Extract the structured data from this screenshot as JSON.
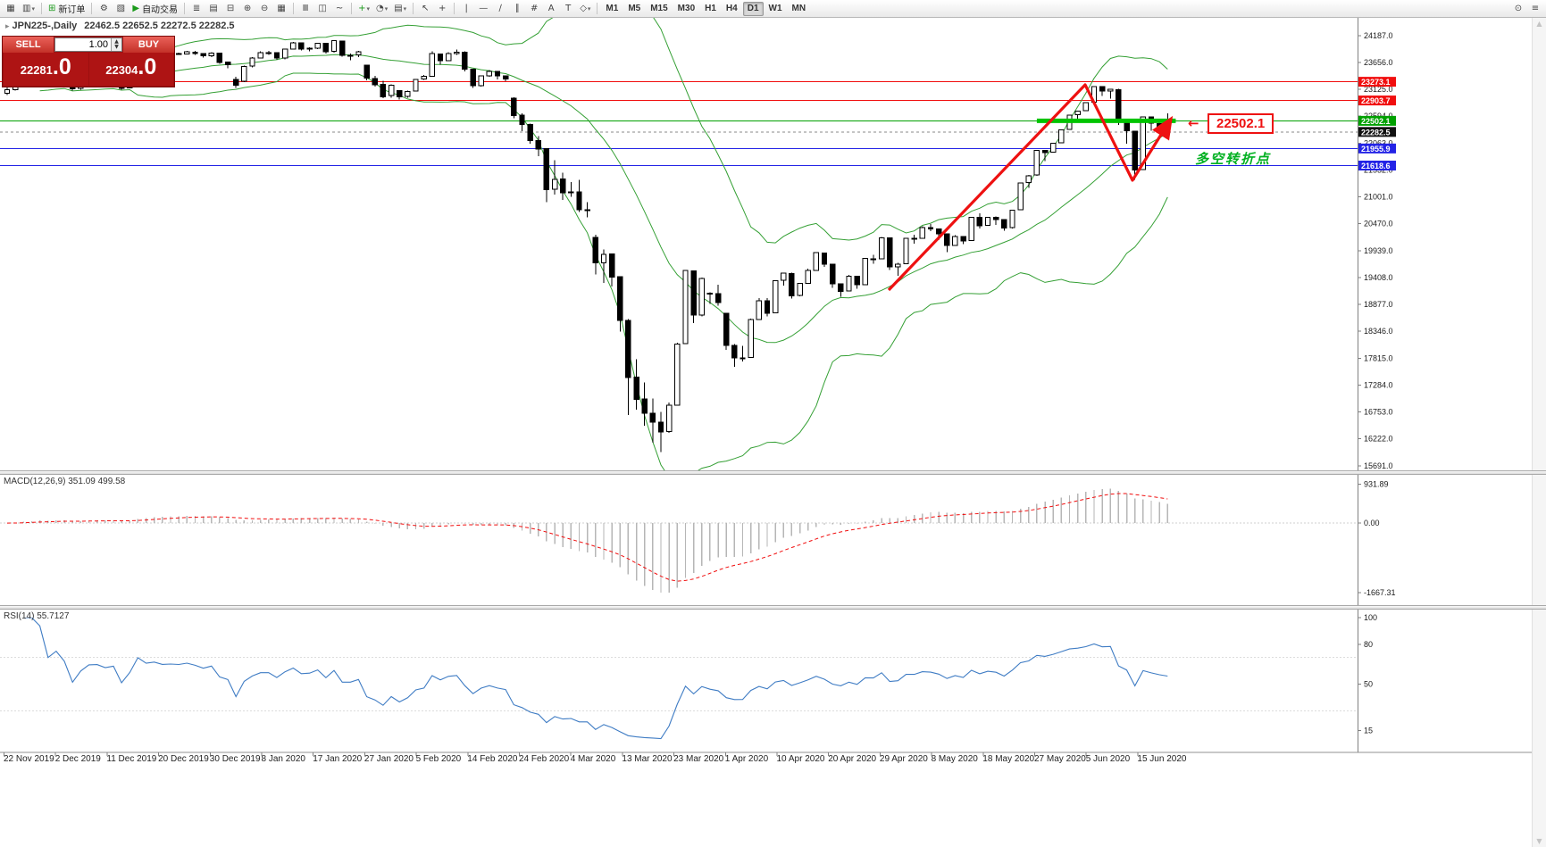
{
  "toolbar": {
    "items": [
      {
        "type": "icon",
        "name": "new-chart-icon",
        "glyph": "▦"
      },
      {
        "type": "icon",
        "name": "profiles-icon",
        "glyph": "▥",
        "dropdown": true
      },
      {
        "type": "sep"
      },
      {
        "type": "button",
        "name": "new-order-button",
        "glyph": "⊞",
        "glyph_color": "#1a9a1a",
        "label": "新订单"
      },
      {
        "type": "sep"
      },
      {
        "type": "icon",
        "name": "metaeditor-icon",
        "glyph": "⚙"
      },
      {
        "type": "icon",
        "name": "strategy-tester-icon",
        "glyph": "▧"
      },
      {
        "type": "button",
        "name": "auto-trading-button",
        "glyph": "▶",
        "glyph_color": "#1a9a1a",
        "label": "自动交易"
      },
      {
        "type": "sep"
      },
      {
        "type": "icon",
        "name": "market-watch-icon",
        "glyph": "≣"
      },
      {
        "type": "icon",
        "name": "data-window-icon",
        "glyph": "▤"
      },
      {
        "type": "icon",
        "name": "navigator-icon",
        "glyph": "⊟"
      },
      {
        "type": "icon",
        "name": "zoom-in-icon",
        "glyph": "⊕"
      },
      {
        "type": "icon",
        "name": "zoom-out-icon",
        "glyph": "⊖"
      },
      {
        "type": "icon",
        "name": "tile-windows-icon",
        "glyph": "▦"
      },
      {
        "type": "sep"
      },
      {
        "type": "icon",
        "name": "bar-chart-icon",
        "glyph": "Ⅲ"
      },
      {
        "type": "icon",
        "name": "candlestick-chart-icon",
        "glyph": "◫"
      },
      {
        "type": "icon",
        "name": "line-chart-icon",
        "glyph": "~"
      },
      {
        "type": "sep"
      },
      {
        "type": "icon",
        "name": "add-indicator-icon",
        "glyph": "+",
        "glyph_color": "#1a9a1a",
        "dropdown": true
      },
      {
        "type": "icon",
        "name": "period-icon",
        "glyph": "◔",
        "dropdown": true
      },
      {
        "type": "icon",
        "name": "template-icon",
        "glyph": "▤",
        "dropdown": true
      },
      {
        "type": "sep"
      },
      {
        "type": "icon",
        "name": "cursor-icon",
        "glyph": "↖"
      },
      {
        "type": "icon",
        "name": "crosshair-icon",
        "glyph": "+"
      },
      {
        "type": "sep"
      },
      {
        "type": "icon",
        "name": "vertical-line-icon",
        "glyph": "|"
      },
      {
        "type": "icon",
        "name": "horizontal-line-icon",
        "glyph": "—"
      },
      {
        "type": "icon",
        "name": "trendline-icon",
        "glyph": "∕"
      },
      {
        "type": "icon",
        "name": "channel-icon",
        "glyph": "∥"
      },
      {
        "type": "icon",
        "name": "fibonacci-icon",
        "glyph": "#"
      },
      {
        "type": "icon",
        "name": "text-icon",
        "glyph": "A"
      },
      {
        "type": "icon",
        "name": "label-icon",
        "glyph": "T"
      },
      {
        "type": "icon",
        "name": "shapes-icon",
        "glyph": "◇",
        "dropdown": true
      },
      {
        "type": "sep"
      },
      {
        "type": "tf",
        "name": "timeframe-m1",
        "label": "M1"
      },
      {
        "type": "tf",
        "name": "timeframe-m5",
        "label": "M5"
      },
      {
        "type": "tf",
        "name": "timeframe-m15",
        "label": "M15"
      },
      {
        "type": "tf",
        "name": "timeframe-m30",
        "label": "M30"
      },
      {
        "type": "tf",
        "name": "timeframe-h1",
        "label": "H1"
      },
      {
        "type": "tf",
        "name": "timeframe-h4",
        "label": "H4"
      },
      {
        "type": "tf",
        "name": "timeframe-d1",
        "label": "D1",
        "active": true
      },
      {
        "type": "tf",
        "name": "timeframe-w1",
        "label": "W1"
      },
      {
        "type": "tf",
        "name": "timeframe-mn",
        "label": "MN"
      },
      {
        "type": "spacer"
      },
      {
        "type": "icon",
        "name": "search-icon",
        "glyph": "⊙"
      },
      {
        "type": "icon",
        "name": "menu-icon",
        "glyph": "≡"
      }
    ]
  },
  "chart_header": {
    "marker": "▸",
    "symbol_period": "JPN225-,Daily",
    "ohlc": "22462.5 22652.5 22272.5 22282.5"
  },
  "trade_panel": {
    "sell_label": "SELL",
    "buy_label": "BUY",
    "volume": "1.00",
    "sell_price_main": "22281",
    "sell_price_frac": ".0",
    "buy_price_main": "22304",
    "buy_price_frac": ".0",
    "spin_up": "▲",
    "spin_down": "▼"
  },
  "annotations": {
    "price_callout": "22502.1",
    "callout_arrow": "←",
    "turning_point_text": "多空转折点"
  },
  "scrollbar": {
    "up_arrow": "▲",
    "down_arrow": "▼"
  },
  "chart_data": {
    "type": "candlestick",
    "title": "JPN225-,Daily",
    "price_axis": {
      "p_min": 15600,
      "p_max": 24500,
      "ticks": [
        24187,
        23656,
        23125,
        22594,
        22063,
        21532,
        21001,
        20470,
        19939,
        19408,
        18877,
        18346,
        17815,
        17284,
        16753,
        16222,
        15691
      ]
    },
    "x_dates": [
      "22 Nov 2019",
      "2 Dec 2019",
      "11 Dec 2019",
      "20 Dec 2019",
      "30 Dec 2019",
      "8 Jan 2020",
      "17 Jan 2020",
      "27 Jan 2020",
      "5 Feb 2020",
      "14 Feb 2020",
      "24 Feb 2020",
      "4 Mar 2020",
      "13 Mar 2020",
      "23 Mar 2020",
      "1 Apr 2020",
      "10 Apr 2020",
      "20 Apr 2020",
      "29 Apr 2020",
      "8 May 2020",
      "18 May 2020",
      "27 May 2020",
      "5 Jun 2020",
      "15 Jun 2020"
    ],
    "candles": [
      [
        23050,
        23160,
        23015,
        23113
      ],
      [
        23120,
        23310,
        23100,
        23293
      ],
      [
        23290,
        23410,
        23250,
        23373
      ],
      [
        23380,
        23450,
        23340,
        23430
      ],
      [
        23430,
        23460,
        23350,
        23409
      ],
      [
        23400,
        23420,
        23260,
        23294
      ],
      [
        23300,
        23400,
        23270,
        23380
      ],
      [
        23380,
        23410,
        23290,
        23320
      ],
      [
        23310,
        23330,
        23100,
        23135
      ],
      [
        23140,
        23320,
        23120,
        23300
      ],
      [
        23310,
        23450,
        23290,
        23424
      ],
      [
        23425,
        23460,
        23380,
        23430
      ],
      [
        23430,
        23440,
        23350,
        23391
      ],
      [
        23390,
        23450,
        23360,
        23424
      ],
      [
        23420,
        23430,
        23120,
        23141
      ],
      [
        23150,
        23400,
        23140,
        23392
      ],
      [
        23400,
        23960,
        23390,
        23935
      ],
      [
        23930,
        23950,
        23790,
        23817
      ],
      [
        23820,
        23880,
        23790,
        23864
      ],
      [
        23860,
        23870,
        23780,
        23817
      ],
      [
        23820,
        23850,
        23790,
        23830
      ],
      [
        23830,
        23850,
        23800,
        23821
      ],
      [
        23825,
        23880,
        23810,
        23865
      ],
      [
        23860,
        23880,
        23800,
        23830
      ],
      [
        23830,
        23840,
        23750,
        23782
      ],
      [
        23785,
        23860,
        23760,
        23838
      ],
      [
        23835,
        23840,
        23630,
        23657
      ],
      [
        23660,
        23670,
        23540,
        23606
      ],
      [
        23320,
        23370,
        23150,
        23205
      ],
      [
        23280,
        23590,
        23270,
        23576
      ],
      [
        23580,
        23760,
        23560,
        23740
      ],
      [
        23745,
        23870,
        23730,
        23851
      ],
      [
        23850,
        23880,
        23800,
        23851
      ],
      [
        23850,
        23860,
        23710,
        23740
      ],
      [
        23745,
        23930,
        23720,
        23916
      ],
      [
        23920,
        24060,
        23910,
        24041
      ],
      [
        24040,
        24050,
        23890,
        23917
      ],
      [
        23920,
        23950,
        23870,
        23933
      ],
      [
        23935,
        24040,
        23920,
        24031
      ],
      [
        24030,
        24040,
        23830,
        23865
      ],
      [
        23870,
        24090,
        23850,
        24084
      ],
      [
        24080,
        24090,
        23770,
        23795
      ],
      [
        23790,
        23830,
        23700,
        23796
      ],
      [
        23800,
        23880,
        23760,
        23869
      ],
      [
        23600,
        23610,
        23300,
        23343
      ],
      [
        23340,
        23390,
        23180,
        23216
      ],
      [
        23220,
        23290,
        22950,
        22977
      ],
      [
        23000,
        23220,
        22960,
        23205
      ],
      [
        23100,
        23110,
        22920,
        22972
      ],
      [
        22980,
        23100,
        22960,
        23085
      ],
      [
        23090,
        23330,
        23080,
        23320
      ],
      [
        23330,
        23410,
        23310,
        23378
      ],
      [
        23380,
        23870,
        23370,
        23828
      ],
      [
        23820,
        23830,
        23610,
        23686
      ],
      [
        23690,
        23860,
        23680,
        23827
      ],
      [
        23830,
        23910,
        23800,
        23861
      ],
      [
        23860,
        23870,
        23480,
        23523
      ],
      [
        23520,
        23530,
        23150,
        23193
      ],
      [
        23200,
        23400,
        23180,
        23386
      ],
      [
        23390,
        23500,
        23370,
        23479
      ],
      [
        23480,
        23490,
        23320,
        23387
      ],
      [
        23390,
        23400,
        23280,
        23330
      ],
      [
        22950,
        22970,
        22550,
        22605
      ],
      [
        22610,
        22650,
        22300,
        22426
      ],
      [
        22430,
        22450,
        22050,
        22110
      ],
      [
        22110,
        22200,
        21800,
        21948
      ],
      [
        21950,
        21960,
        20900,
        21143
      ],
      [
        21150,
        21720,
        21050,
        21344
      ],
      [
        21350,
        21480,
        20940,
        21083
      ],
      [
        21090,
        21290,
        21000,
        21100
      ],
      [
        21100,
        21340,
        20700,
        20750
      ],
      [
        20750,
        20900,
        20600,
        20749
      ],
      [
        20200,
        20250,
        19470,
        19698
      ],
      [
        19700,
        19960,
        19300,
        19867
      ],
      [
        19870,
        19880,
        19230,
        19416
      ],
      [
        19420,
        19430,
        18340,
        18560
      ],
      [
        18560,
        18590,
        16690,
        17431
      ],
      [
        17440,
        17790,
        16800,
        17002
      ],
      [
        17010,
        17340,
        16480,
        16727
      ],
      [
        16730,
        17020,
        16150,
        16552
      ],
      [
        16550,
        16750,
        15960,
        16360
      ],
      [
        16370,
        16940,
        16340,
        16887
      ],
      [
        16890,
        18120,
        16880,
        18092
      ],
      [
        18100,
        19560,
        18090,
        19546
      ],
      [
        19540,
        19550,
        18510,
        18664
      ],
      [
        18670,
        19410,
        18640,
        19389
      ],
      [
        19100,
        19120,
        18890,
        19085
      ],
      [
        19090,
        19270,
        18850,
        18917
      ],
      [
        18700,
        18710,
        17980,
        18065
      ],
      [
        18070,
        18090,
        17640,
        17818
      ],
      [
        17820,
        18060,
        17750,
        17820
      ],
      [
        17830,
        18600,
        17820,
        18576
      ],
      [
        18580,
        19000,
        18570,
        18950
      ],
      [
        18950,
        19000,
        18640,
        18700
      ],
      [
        18710,
        19350,
        18700,
        19346
      ],
      [
        19350,
        19500,
        19250,
        19498
      ],
      [
        19490,
        19500,
        18990,
        19043
      ],
      [
        19050,
        19300,
        19040,
        19290
      ],
      [
        19290,
        19580,
        19280,
        19550
      ],
      [
        19550,
        19900,
        19540,
        19897
      ],
      [
        19890,
        19900,
        19620,
        19669
      ],
      [
        19670,
        19680,
        19200,
        19280
      ],
      [
        19280,
        19290,
        19030,
        19137
      ],
      [
        19140,
        19460,
        19130,
        19429
      ],
      [
        19430,
        19440,
        19190,
        19262
      ],
      [
        19270,
        19790,
        19260,
        19783
      ],
      [
        19780,
        19860,
        19680,
        19771
      ],
      [
        19780,
        20210,
        19770,
        20194
      ],
      [
        20190,
        20200,
        19560,
        19619
      ],
      [
        19620,
        19700,
        19440,
        19674
      ],
      [
        19680,
        20190,
        19670,
        20179
      ],
      [
        20180,
        20250,
        20080,
        20179
      ],
      [
        20180,
        20420,
        20170,
        20390
      ],
      [
        20390,
        20460,
        20320,
        20366
      ],
      [
        20370,
        20380,
        20150,
        20267
      ],
      [
        20270,
        20280,
        19910,
        20037
      ],
      [
        20040,
        20240,
        20030,
        20218
      ],
      [
        20220,
        20230,
        20070,
        20133
      ],
      [
        20140,
        20600,
        20130,
        20595
      ],
      [
        20600,
        20680,
        20380,
        20433
      ],
      [
        20440,
        20600,
        20430,
        20595
      ],
      [
        20600,
        20610,
        20450,
        20552
      ],
      [
        20550,
        20560,
        20330,
        20388
      ],
      [
        20390,
        20750,
        20380,
        20741
      ],
      [
        20750,
        21280,
        20740,
        21271
      ],
      [
        21280,
        21430,
        21180,
        21419
      ],
      [
        21430,
        21920,
        21420,
        21916
      ],
      [
        21920,
        21930,
        21710,
        21878
      ],
      [
        21880,
        22070,
        21870,
        22062
      ],
      [
        22070,
        22330,
        22060,
        22326
      ],
      [
        22330,
        22620,
        22320,
        22614
      ],
      [
        22620,
        22700,
        22510,
        22696
      ],
      [
        22700,
        22870,
        22690,
        22864
      ],
      [
        22870,
        23180,
        22860,
        23178
      ],
      [
        23180,
        23190,
        22990,
        23091
      ],
      [
        23090,
        23130,
        22940,
        23125
      ],
      [
        23120,
        23130,
        22420,
        22473
      ],
      [
        22470,
        22480,
        22050,
        22305
      ],
      [
        22300,
        22310,
        21340,
        21530
      ],
      [
        21540,
        22590,
        21530,
        22582
      ],
      [
        22580,
        22590,
        22310,
        22455
      ],
      [
        22450,
        22530,
        22290,
        22355
      ],
      [
        22462.5,
        22652.5,
        22272.5,
        22282.5
      ]
    ],
    "bollinger": {
      "period": 20,
      "deviations": 2,
      "color": "#35a035"
    },
    "hlines": [
      {
        "price": 23273.1,
        "color": "#f10e0e",
        "width": 1
      },
      {
        "price": 22903.7,
        "color": "#f10e0e",
        "width": 1
      },
      {
        "price": 22502.1,
        "color": "#00a000",
        "width": 1
      },
      {
        "price": 21955.9,
        "color": "#2323e6",
        "width": 1
      },
      {
        "price": 21618.6,
        "color": "#2323e6",
        "width": 1
      }
    ],
    "bid_line": {
      "price": 22282.5,
      "color": "#8a8a8a",
      "style": "dash"
    },
    "support_zone": {
      "price": 22502.1,
      "from_index": 126,
      "to_index": 143,
      "color": "#00c400",
      "thickness": 5
    },
    "trend_arrow": {
      "color": "#ee1111",
      "points": [
        [
          995,
          325
        ],
        [
          1215,
          95
        ],
        [
          1268,
          202
        ],
        [
          1308,
          138
        ]
      ]
    },
    "indicators": {
      "macd": {
        "label": "MACD(12,26,9) 351.09 499.58",
        "fast": 12,
        "slow": 26,
        "signal": 9,
        "scale_max": 1050,
        "scale_min": -1900,
        "scale_ticks": [
          {
            "v": 931.89,
            "t": "931.89"
          },
          {
            "v": 0,
            "t": "0.00"
          },
          {
            "v": -1667.31,
            "t": "-1667.31"
          }
        ],
        "histogram_color": "#b6b6b6",
        "signal_color": "#f10e0e"
      },
      "rsi": {
        "label": "RSI(14) 55.7127",
        "period": 14,
        "levels": [
          70,
          30
        ],
        "scale_ticks": [
          {
            "v": 100,
            "t": "100"
          },
          {
            "v": 80,
            "t": "80"
          },
          {
            "v": 50,
            "t": "50"
          },
          {
            "v": 15,
            "t": "15"
          }
        ],
        "line_color": "#3f7cc4"
      }
    }
  }
}
